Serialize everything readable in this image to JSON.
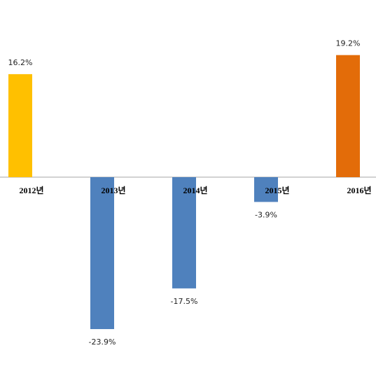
{
  "chart_data": {
    "type": "bar",
    "categories": [
      "2012년",
      "2013년",
      "2014년",
      "2015년",
      "2016년"
    ],
    "values": [
      16.2,
      -23.9,
      -17.5,
      -3.9,
      19.2
    ],
    "value_labels": [
      "16.2%",
      "-23.9%",
      "-17.5%",
      "-3.9%",
      "19.2%"
    ],
    "colors": [
      "#ffc000",
      "#4f81bd",
      "#4f81bd",
      "#4f81bd",
      "#e36c09"
    ]
  }
}
